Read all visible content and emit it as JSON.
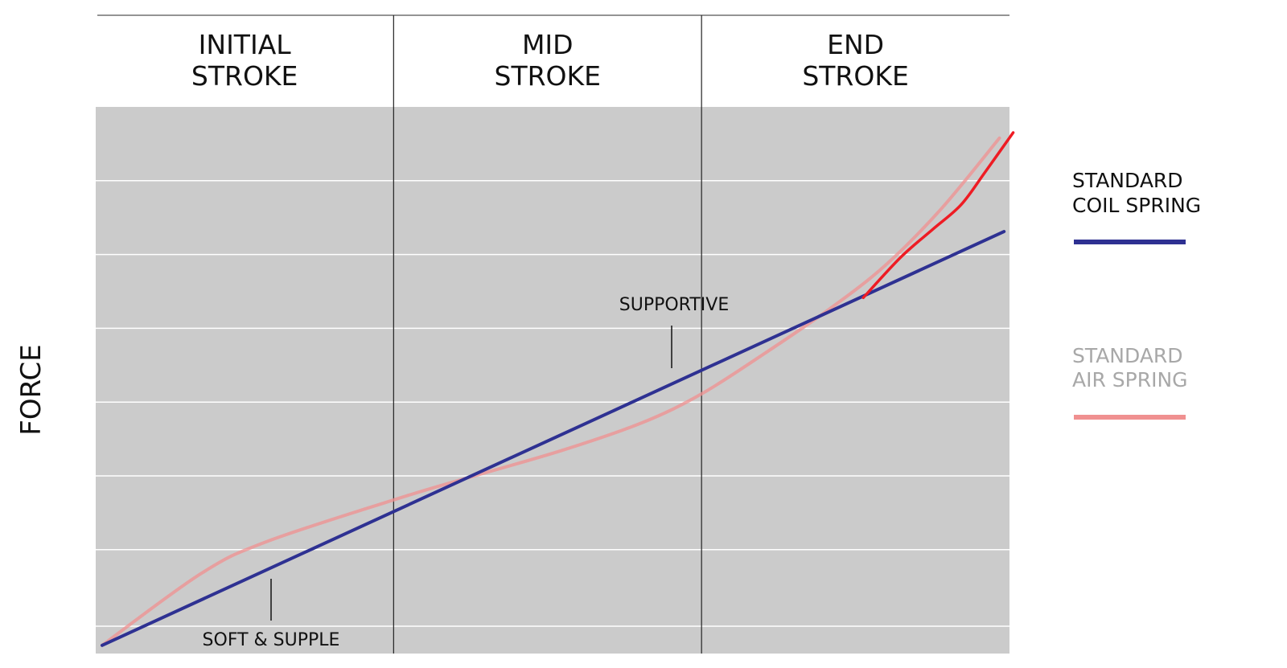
{
  "chart_data": {
    "type": "line",
    "xlabel": "",
    "ylabel": "FORCE",
    "xlim": [
      0,
      100
    ],
    "ylim": [
      0,
      100
    ],
    "grid": true,
    "y_gridlines": [
      5,
      19,
      32.5,
      46,
      59.5,
      73,
      86.5
    ],
    "zones": [
      {
        "label_line1": "INITIAL",
        "label_line2": "STROKE",
        "x_start": 0,
        "x_end": 32.6
      },
      {
        "label_line1": "MID",
        "label_line2": "STROKE",
        "x_start": 32.6,
        "x_end": 66.3
      },
      {
        "label_line1": "END",
        "label_line2": "STROKE",
        "x_start": 66.3,
        "x_end": 100
      }
    ],
    "series": [
      {
        "name": "STANDARD COIL SPRING",
        "color": "#2e3192",
        "x": [
          0.7,
          99.4
        ],
        "y": [
          1.5,
          77.2
        ]
      },
      {
        "name": "STANDARD AIR SPRING",
        "color": "#f09090",
        "x": [
          0.7,
          11.5,
          18.6,
          32.6,
          40.6,
          51.1,
          59.9,
          66.3,
          73.2,
          80.2,
          86.4,
          92.5,
          98.9
        ],
        "y": [
          1.5,
          14.6,
          20.4,
          28.1,
          32.1,
          37.2,
          42.3,
          47.5,
          54.9,
          62.9,
          71.0,
          81.3,
          94.3
        ]
      },
      {
        "color": "#ee1c24",
        "x": [
          84.0,
          88.1,
          91.6,
          94.7,
          97.3,
          100.4
        ],
        "y": [
          65.1,
          72.5,
          77.6,
          82.1,
          88.0,
          95.3
        ]
      }
    ],
    "annotations": [
      {
        "text": "SUPPORTIVE",
        "x": 63.8,
        "y": 52
      },
      {
        "text": "SOFT & SUPPLE",
        "x": 19.2,
        "y": 6
      }
    ],
    "legend_position": "right"
  }
}
